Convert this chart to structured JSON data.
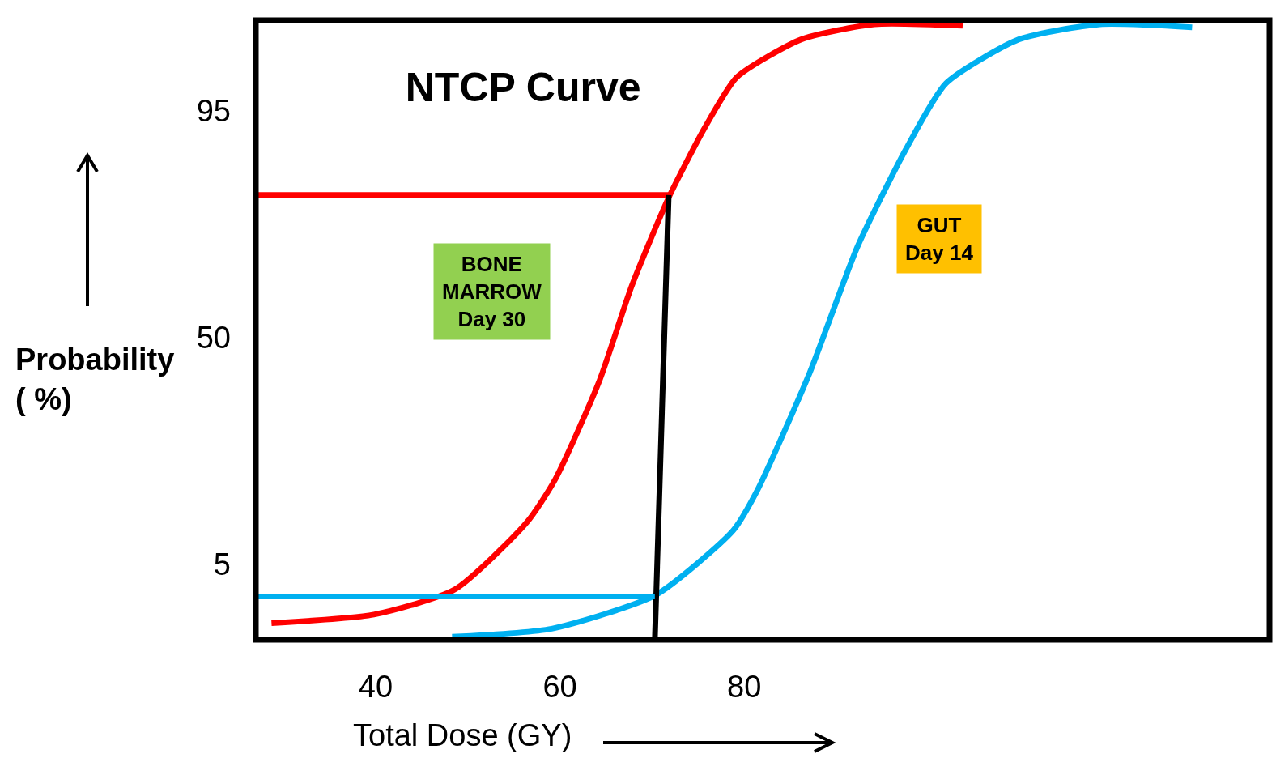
{
  "chart_data": {
    "type": "line",
    "title": "NTCP Curve",
    "xlabel": "Total Dose (GY)",
    "ylabel": "Probability\n( %)",
    "xlim": [
      27,
      137
    ],
    "xticks": [
      40,
      60,
      80
    ],
    "ylim": [
      -10,
      113
    ],
    "yticks": [
      5,
      50,
      95
    ],
    "grid": false,
    "marker": "none",
    "line_style": "solid",
    "series": [
      {
        "color": "#ff0000",
        "x": [
          28.7,
          39.8,
          48.6,
          56.4,
          59.5,
          64.3,
          67.8,
          71.8,
          75.7,
          79.2,
          86.2,
          94.1,
          103.7
        ],
        "values": [
          -6.7,
          -5,
          0,
          13.3,
          21.9,
          41.5,
          60.3,
          77.8,
          91.6,
          101.7,
          109.2,
          112.2,
          111.9
        ]
      },
      {
        "color": "#00b0f0",
        "x": [
          48.3,
          59.1,
          70.4,
          78.8,
          81.4,
          87.1,
          92.3,
          97.6,
          101.9,
          109.8,
          118.6,
          128.6
        ],
        "values": [
          -9.4,
          -7.8,
          -1.1,
          11.7,
          19.6,
          43,
          68.1,
          87.6,
          100.5,
          109.2,
          112.2,
          111.6
        ]
      },
      {
        "color": "#ff0000",
        "x": [
          27,
          71.8
        ],
        "values": [
          78.3,
          78.3
        ]
      },
      {
        "color": "#000000",
        "x": [
          71.8,
          70.3
        ],
        "values": [
          78.3,
          -10
        ]
      },
      {
        "color": "#00b0f0",
        "x": [
          27,
          70.3
        ],
        "values": [
          -1.4,
          -1.4
        ]
      }
    ],
    "annotations": [
      "BONE\nMARROW\nDay 30",
      "GUT\nDay 14"
    ]
  }
}
